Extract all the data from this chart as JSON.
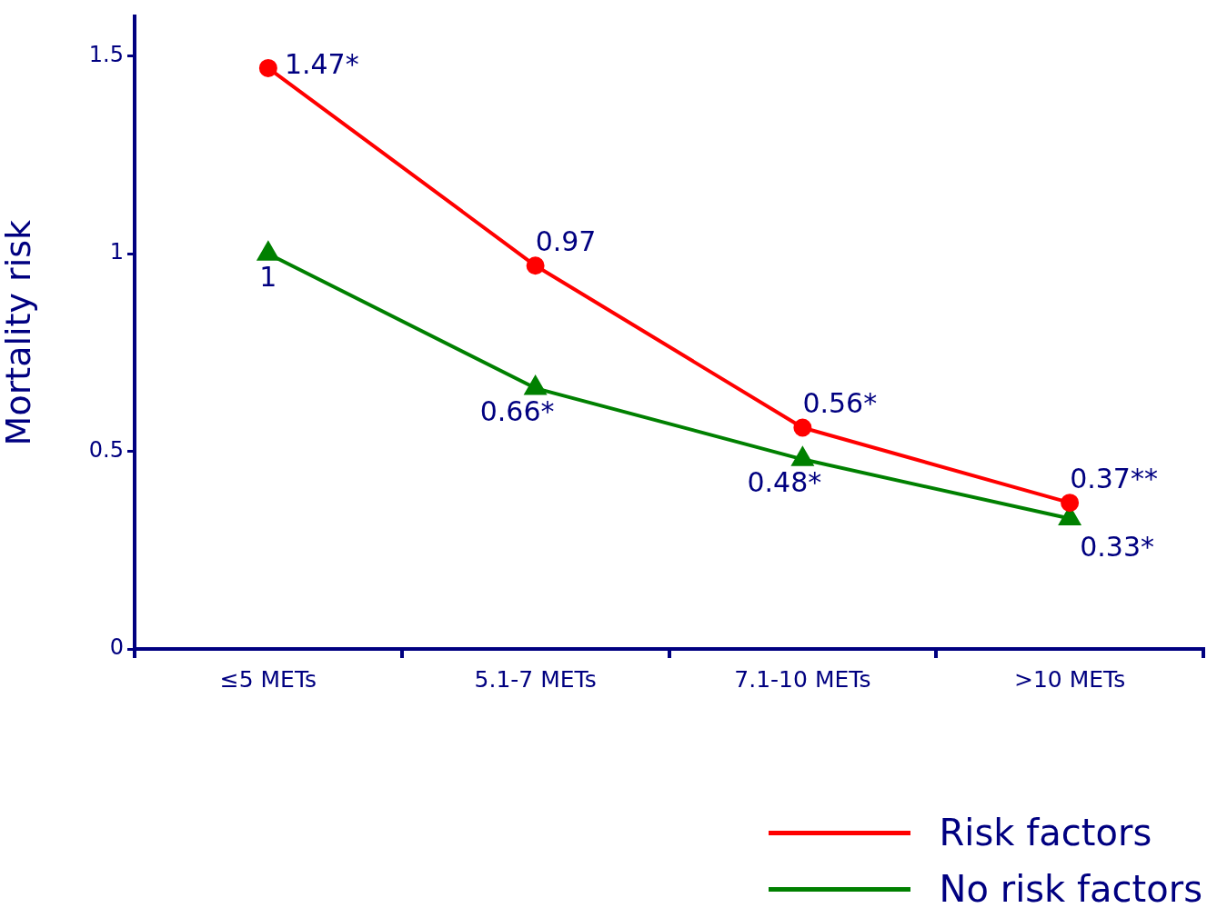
{
  "chart_data": {
    "type": "line",
    "ylabel": "Mortality risk",
    "categories": [
      "≤5 METs",
      "5.1-7 METs",
      "7.1-10 METs",
      ">10 METs"
    ],
    "series": [
      {
        "name": "Risk factors",
        "color": "#ff0000",
        "marker": "circle",
        "values": [
          1.47,
          0.97,
          0.56,
          0.37
        ],
        "value_labels": [
          "1.47*",
          "0.97",
          "0.56*",
          "0.37**"
        ]
      },
      {
        "name": "No risk factors",
        "color": "#008000",
        "marker": "triangle",
        "values": [
          1,
          0.66,
          0.48,
          0.33
        ],
        "value_labels": [
          "1",
          "0.66*",
          "0.48*",
          "0.33*"
        ]
      }
    ],
    "ylim": [
      0,
      1.6
    ],
    "yticks": [
      0,
      0.5,
      1,
      1.5
    ],
    "grid": false,
    "legend": "bottom right",
    "line_style": "solid"
  }
}
